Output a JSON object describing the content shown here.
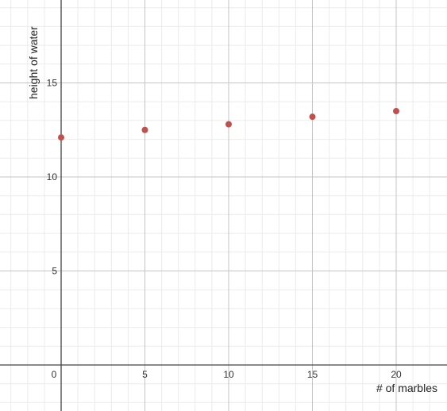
{
  "chart_data": {
    "type": "scatter",
    "title": "",
    "xlabel": "# of marbles",
    "ylabel": "height of water",
    "xlim": [
      -3,
      22.5
    ],
    "ylim": [
      -2,
      19
    ],
    "x_ticks": [
      "0",
      "5",
      "10",
      "15",
      "20"
    ],
    "y_ticks": [
      "5",
      "10",
      "15"
    ],
    "grid": true,
    "point_color": "#c0504d",
    "series": [
      {
        "x": [
          0,
          5,
          10,
          15,
          20
        ],
        "y": [
          12.1,
          12.5,
          12.8,
          13.2,
          13.5
        ]
      }
    ]
  }
}
